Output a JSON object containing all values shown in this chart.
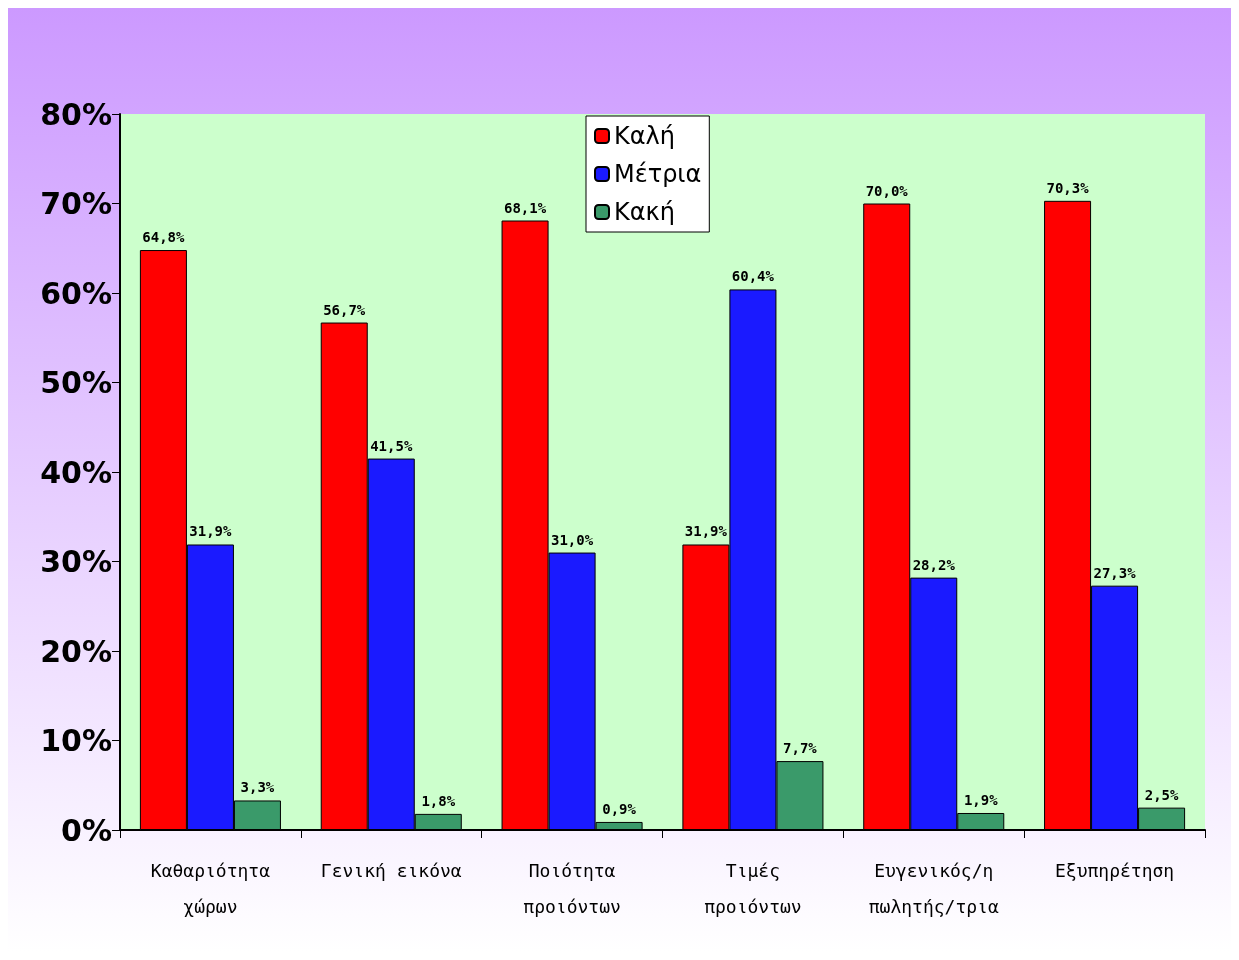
{
  "chart_data": {
    "type": "bar",
    "categories": [
      "Καθαριότητα\nχώρων",
      "Γενική εικόνα",
      "Ποιότητα\nπροιόντων",
      "Τιμές\nπροιόντων",
      "Ευγενικός/η\nπωλητής/τρια",
      "Εξυπηρέτηση"
    ],
    "series": [
      {
        "name": "Καλή",
        "color": "#ff0000",
        "values": [
          64.8,
          56.7,
          68.1,
          31.9,
          70.0,
          70.3
        ],
        "value_labels": [
          "64,8%",
          "56,7%",
          "68,1%",
          "31,9%",
          "70,0%",
          "70,3%"
        ]
      },
      {
        "name": "Μέτρια",
        "color": "#1a1aff",
        "values": [
          31.9,
          41.5,
          31.0,
          60.4,
          28.2,
          27.3
        ],
        "value_labels": [
          "31,9%",
          "41,5%",
          "31,0%",
          "60,4%",
          "28,2%",
          "27,3%"
        ]
      },
      {
        "name": "Κακή",
        "color": "#3a9a6a",
        "values": [
          3.3,
          1.8,
          0.9,
          7.7,
          1.9,
          2.5
        ],
        "value_labels": [
          "3,3%",
          "1,8%",
          "0,9%",
          "7,7%",
          "1,9%",
          "2,5%"
        ]
      }
    ],
    "ylim": [
      0,
      80
    ],
    "yticks": [
      {
        "value": 0,
        "label": "0%"
      },
      {
        "value": 10,
        "label": "10%"
      },
      {
        "value": 20,
        "label": "20%"
      },
      {
        "value": 30,
        "label": "30%"
      },
      {
        "value": 40,
        "label": "40%"
      },
      {
        "value": 50,
        "label": "50%"
      },
      {
        "value": 60,
        "label": "60%"
      },
      {
        "value": 70,
        "label": "70%"
      },
      {
        "value": 80,
        "label": "80%"
      }
    ],
    "grid": false,
    "legend": "top"
  }
}
